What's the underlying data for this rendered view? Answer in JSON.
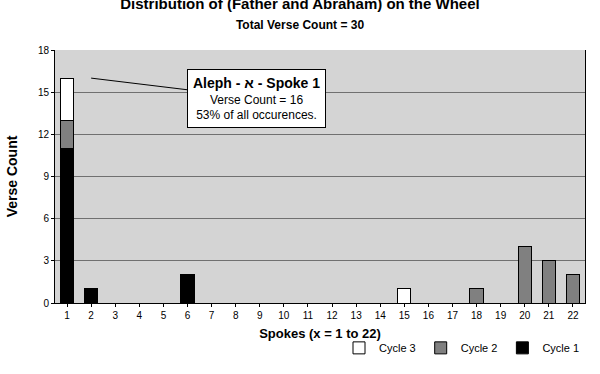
{
  "chart_data": {
    "type": "bar",
    "title": "Distribution of (Father and Abraham) on the Wheel",
    "subtitle": "Total Verse Count = 30",
    "x_label": "Spokes (x = 1 to 22)",
    "y_label": "Verse Count",
    "categories": [
      1,
      2,
      3,
      4,
      5,
      6,
      7,
      8,
      9,
      10,
      11,
      12,
      13,
      14,
      15,
      16,
      17,
      18,
      19,
      20,
      21,
      22
    ],
    "series": [
      {
        "name": "Cycle 1",
        "color": "#000000",
        "values": [
          11,
          1,
          0,
          0,
          0,
          2,
          0,
          0,
          0,
          0,
          0,
          0,
          0,
          0,
          0,
          0,
          0,
          0,
          0,
          0,
          0,
          0
        ]
      },
      {
        "name": "Cycle 2",
        "color": "#808080",
        "values": [
          2,
          0,
          0,
          0,
          0,
          0,
          0,
          0,
          0,
          0,
          0,
          0,
          0,
          0,
          0,
          0,
          0,
          1,
          0,
          4,
          3,
          2
        ]
      },
      {
        "name": "Cycle 3",
        "color": "#ffffff",
        "values": [
          3,
          0,
          0,
          0,
          0,
          0,
          0,
          0,
          0,
          0,
          0,
          0,
          0,
          0,
          1,
          0,
          0,
          0,
          0,
          0,
          0,
          0
        ]
      }
    ],
    "stacked": true,
    "ylim": [
      0,
      18
    ],
    "yticks": [
      0,
      3,
      6,
      9,
      12,
      15,
      18
    ],
    "grid": true,
    "legend": "bottom right",
    "annotations": [
      {
        "lines": [
          "Aleph - א - Spoke 1",
          "Verse Count = 16",
          "53% of all occurences."
        ],
        "x": 1,
        "y": 16
      }
    ]
  }
}
